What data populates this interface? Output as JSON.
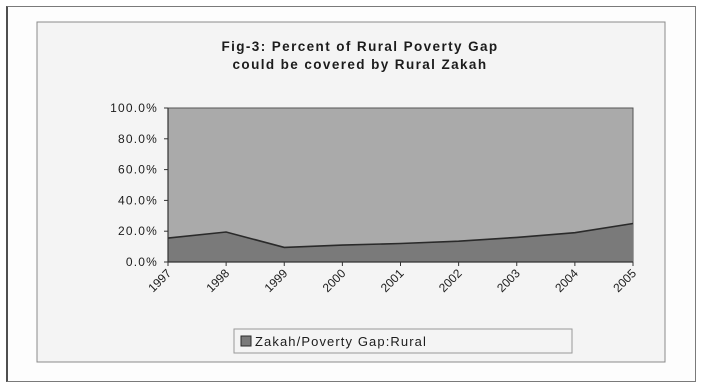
{
  "chart_data": {
    "type": "area",
    "title": "Fig-3: Percent of Rural Poverty Gap",
    "subtitle": "could be covered by Rural Zakah",
    "x": [
      "1997",
      "1998",
      "1999",
      "2000",
      "2001",
      "2002",
      "2003",
      "2004",
      "2005"
    ],
    "series": [
      {
        "name": "Zakah/Poverty Gap:Rural",
        "values": [
          15.5,
          19.5,
          9.5,
          11.0,
          12.0,
          13.5,
          16.0,
          19.0,
          25.0
        ]
      }
    ],
    "y_tick_labels": [
      "100.0%",
      "80.0%",
      "60.0%",
      "40.0%",
      "20.0%",
      "0.0%"
    ],
    "ylim": [
      0,
      100
    ],
    "xlabel": "",
    "ylabel": "",
    "grid": false,
    "legend_position": "bottom",
    "colors": {
      "plot_area": "#aaaaaa",
      "series_fill": "#7a7a7a",
      "series_line": "#2a2a2a",
      "chart_area": "#f4f4f4"
    }
  }
}
